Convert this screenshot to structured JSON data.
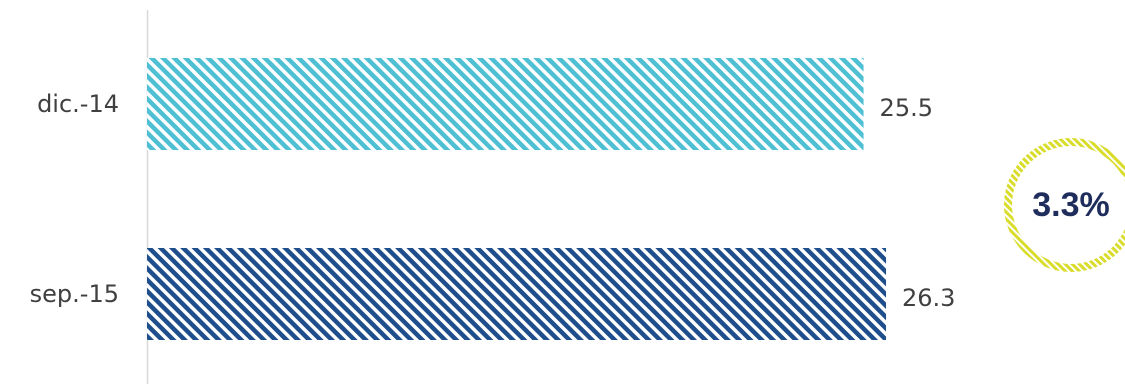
{
  "chart_data": {
    "type": "bar",
    "orientation": "horizontal",
    "categories": [
      "dic.-14",
      "sep.-15"
    ],
    "values": [
      25.5,
      26.3
    ],
    "data_labels": [
      "25.5",
      "26.3"
    ],
    "xlim": [
      0,
      40
    ],
    "grid": false,
    "legend": "none",
    "title": "",
    "xlabel": "",
    "ylabel": ""
  },
  "colors": {
    "bars": [
      "#4fc0d4",
      "#1f4e8c"
    ],
    "badge_ring": "#d9dc2a",
    "badge_text": "#1f2d5c",
    "axis": "#d9d9d9"
  },
  "badge": {
    "text": "3.3%"
  }
}
